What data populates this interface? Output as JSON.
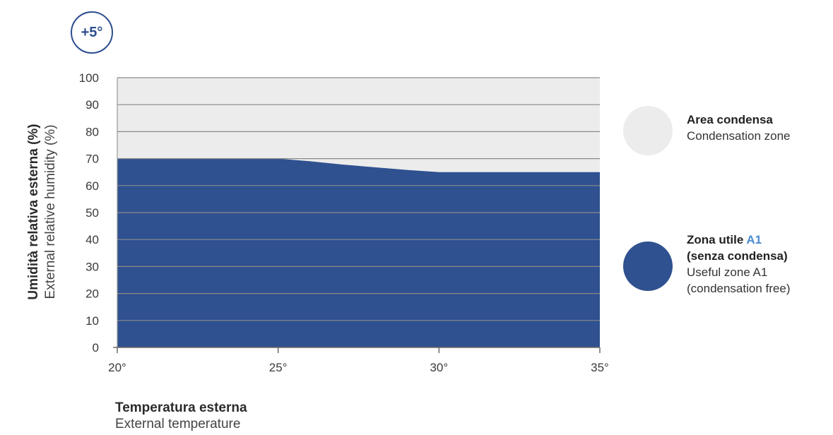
{
  "badge": "+5°",
  "colors": {
    "condensation_zone": "#ececec",
    "useful_zone": "#2f5190",
    "badge_border": "#2d4d8f",
    "gridline": "#8a8a8a",
    "accent_text": "#4a8bd0"
  },
  "y_axis": {
    "title_it": "Umidità relativa esterna (%)",
    "title_en": "External relative humidity (%)",
    "ticks": [
      "0",
      "10",
      "20",
      "30",
      "40",
      "50",
      "60",
      "70",
      "80",
      "90",
      "100"
    ]
  },
  "x_axis": {
    "title_it": "Temperatura esterna",
    "title_en": "External temperature",
    "ticks": [
      "20°",
      "25°",
      "30°",
      "35°"
    ]
  },
  "legend": {
    "condensation": {
      "title": "Area condensa",
      "subtitle": "Condensation zone"
    },
    "useful": {
      "title_prefix": "Zona utile ",
      "title_accent": "A1",
      "title_line2": "(senza condensa)",
      "subtitle_line1": "Useful zone A1",
      "subtitle_line2": "(condensation free)"
    }
  },
  "chart_data": {
    "type": "area",
    "x": [
      20,
      25,
      26,
      27,
      28,
      29,
      30,
      35
    ],
    "values": [
      70,
      70,
      69,
      67.8,
      66.8,
      65.8,
      65,
      65
    ],
    "xlim": [
      20,
      35
    ],
    "ylim": [
      0,
      100
    ],
    "x_ticks": [
      20,
      25,
      30,
      35
    ],
    "y_ticks": [
      0,
      10,
      20,
      30,
      40,
      50,
      60,
      70,
      80,
      90,
      100
    ],
    "grid": true,
    "series": [
      {
        "name": "Zona utile A1 (senza condensa)",
        "fill": "#2f5190"
      },
      {
        "name": "Area condensa",
        "fill": "#ececec"
      }
    ]
  }
}
